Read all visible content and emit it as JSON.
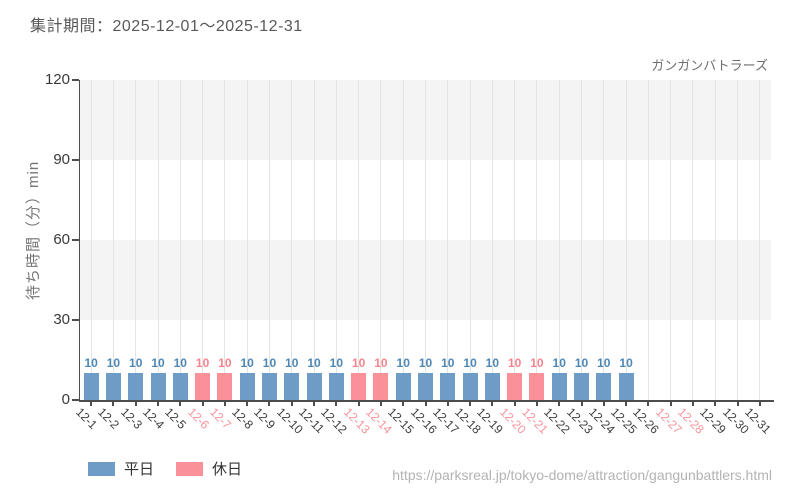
{
  "header": {
    "title": "集計期間：2025-12-01～2025-12-31",
    "attraction": "ガンガンバトラーズ"
  },
  "chart_data": {
    "type": "bar",
    "title": "集計期間：2025-12-01～2025-12-31",
    "ylabel": "待ち時間（分）min",
    "xlabel": "",
    "ylim": [
      0,
      120
    ],
    "yticks": [
      0,
      30,
      60,
      90,
      120
    ],
    "grid": "vertical-gridlines-per-day, alternating horizontal bands",
    "legend_position": "bottom-left",
    "categories": [
      "12-1",
      "12-2",
      "12-3",
      "12-4",
      "12-5",
      "12-6",
      "12-7",
      "12-8",
      "12-9",
      "12-10",
      "12-11",
      "12-12",
      "12-13",
      "12-14",
      "12-15",
      "12-16",
      "12-17",
      "12-18",
      "12-19",
      "12-20",
      "12-21",
      "12-22",
      "12-23",
      "12-24",
      "12-25",
      "12-26",
      "12-27",
      "12-28",
      "12-29",
      "12-30",
      "12-31"
    ],
    "series": [
      {
        "name": "待ち時間（分）",
        "values": [
          10,
          10,
          10,
          10,
          10,
          10,
          10,
          10,
          10,
          10,
          10,
          10,
          10,
          10,
          10,
          10,
          10,
          10,
          10,
          10,
          10,
          10,
          10,
          10,
          10,
          null,
          null,
          null,
          null,
          null,
          null
        ],
        "day_type": [
          "weekday",
          "weekday",
          "weekday",
          "weekday",
          "weekday",
          "holiday",
          "holiday",
          "weekday",
          "weekday",
          "weekday",
          "weekday",
          "weekday",
          "holiday",
          "holiday",
          "weekday",
          "weekday",
          "weekday",
          "weekday",
          "weekday",
          "holiday",
          "holiday",
          "weekday",
          "weekday",
          "weekday",
          "weekday",
          "weekday",
          "holiday",
          "holiday",
          "weekday",
          "weekday",
          "weekday"
        ]
      }
    ],
    "colors": {
      "weekday_bar": "#6e9cc6",
      "holiday_bar": "#fb9198",
      "weekday_value_text": "#4c87b6",
      "holiday_value_text": "#f9848e",
      "weekday_tick_text": "#3d3d3d",
      "holiday_tick_text": "#f9929a",
      "band": "#f4f4f4",
      "gridline": "#e3e3e3",
      "axis": "#4d4d4d"
    }
  },
  "legend": {
    "items": [
      {
        "label": "平日",
        "type": "weekday"
      },
      {
        "label": "休日",
        "type": "holiday"
      }
    ]
  },
  "footer": {
    "url": "https://parksreal.jp/tokyo-dome/attraction/gangunbattlers.html"
  }
}
